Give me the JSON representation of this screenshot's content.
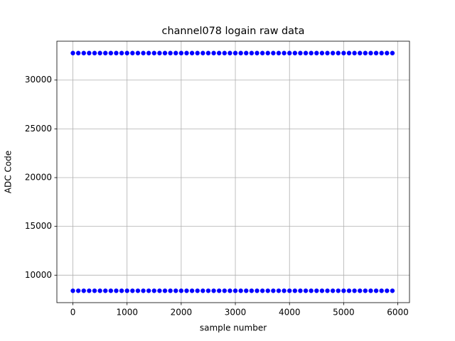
{
  "chart_data": {
    "type": "scatter",
    "title": "channel078 logain raw data",
    "x_label": "sample number",
    "y_label": "ADC Code",
    "x": [
      0,
      100,
      200,
      300,
      400,
      500,
      600,
      700,
      800,
      900,
      1000,
      1100,
      1200,
      1300,
      1400,
      1500,
      1600,
      1700,
      1800,
      1900,
      2000,
      2100,
      2200,
      2300,
      2400,
      2500,
      2600,
      2700,
      2800,
      2900,
      3000,
      3100,
      3200,
      3300,
      3400,
      3500,
      3600,
      3700,
      3800,
      3900,
      4000,
      4100,
      4200,
      4300,
      4400,
      4500,
      4600,
      4700,
      4800,
      4900,
      5000,
      5100,
      5200,
      5300,
      5400,
      5500,
      5600,
      5700,
      5800,
      5900
    ],
    "series": [
      {
        "color": "#0000ff",
        "values": [
          32767,
          32767,
          32767,
          32767,
          32767,
          32767,
          32767,
          32767,
          32767,
          32767,
          32767,
          32767,
          32767,
          32767,
          32767,
          32767,
          32767,
          32767,
          32767,
          32767,
          32767,
          32767,
          32767,
          32767,
          32767,
          32767,
          32767,
          32767,
          32767,
          32767,
          32767,
          32767,
          32767,
          32767,
          32767,
          32767,
          32767,
          32767,
          32767,
          32767,
          32767,
          32767,
          32767,
          32767,
          32767,
          32767,
          32767,
          32767,
          32767,
          32767,
          32767,
          32767,
          32767,
          32767,
          32767,
          32767,
          32767,
          32767,
          32767,
          32767
        ]
      },
      {
        "color": "#0000ff",
        "values": [
          8400,
          8400,
          8400,
          8400,
          8400,
          8400,
          8400,
          8400,
          8400,
          8400,
          8400,
          8400,
          8400,
          8400,
          8400,
          8400,
          8400,
          8400,
          8400,
          8400,
          8400,
          8400,
          8400,
          8400,
          8400,
          8400,
          8400,
          8400,
          8400,
          8400,
          8400,
          8400,
          8400,
          8400,
          8400,
          8400,
          8400,
          8400,
          8400,
          8400,
          8400,
          8400,
          8400,
          8400,
          8400,
          8400,
          8400,
          8400,
          8400,
          8400,
          8400,
          8400,
          8400,
          8400,
          8400,
          8400,
          8400,
          8400,
          8400,
          8400
        ]
      }
    ],
    "xlim": [
      -296,
      6216
    ],
    "xticks": [
      0,
      1000,
      2000,
      3000,
      4000,
      5000,
      6000
    ],
    "ylim": [
      7182,
      33985
    ],
    "yticks": [
      10000,
      15000,
      20000,
      25000,
      30000
    ],
    "grid": true
  }
}
